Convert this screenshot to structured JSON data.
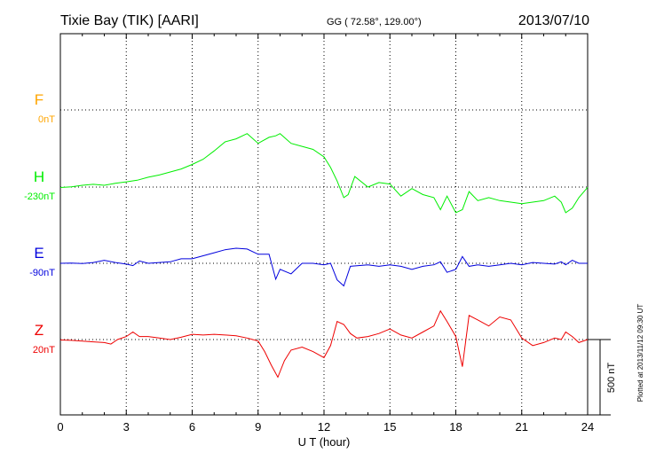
{
  "header": {
    "station": "Tixie Bay (TIK)  [AARI]",
    "coords": "GG ( 72.58°, 129.00°)",
    "date": "2013/07/10"
  },
  "footer": {
    "plotted": "Plotted at 2013/11/12 09:30 UT"
  },
  "colors": {
    "F": "#ffa500",
    "H": "#00ee00",
    "E": "#0000dd",
    "Z": "#ee0000",
    "grid": "#000000",
    "axis": "#000000"
  },
  "chart_data": {
    "type": "line",
    "xlabel": "U T (hour)",
    "xlim": [
      0,
      24
    ],
    "x_ticks": [
      "0",
      "3",
      "6",
      "9",
      "12",
      "15",
      "18",
      "21",
      "24"
    ],
    "scale_bar_label": "500 nT",
    "series": [
      {
        "name": "F",
        "baseline_label": "0nT",
        "points": []
      },
      {
        "name": "H",
        "baseline_label": "-230nT",
        "points": [
          [
            0,
            -233
          ],
          [
            0.5,
            -228
          ],
          [
            1,
            -218
          ],
          [
            1.5,
            -212
          ],
          [
            2,
            -218
          ],
          [
            2.5,
            -205
          ],
          [
            3,
            -195
          ],
          [
            3.5,
            -185
          ],
          [
            4,
            -165
          ],
          [
            4.5,
            -150
          ],
          [
            5,
            -130
          ],
          [
            5.5,
            -110
          ],
          [
            6,
            -80
          ],
          [
            6.5,
            -45
          ],
          [
            7,
            10
          ],
          [
            7.5,
            70
          ],
          [
            8,
            90
          ],
          [
            8.5,
            125
          ],
          [
            9,
            60
          ],
          [
            9.5,
            100
          ],
          [
            9.8,
            110
          ],
          [
            10,
            125
          ],
          [
            10.5,
            60
          ],
          [
            11,
            40
          ],
          [
            11.5,
            20
          ],
          [
            12,
            -30
          ],
          [
            12.3,
            -100
          ],
          [
            12.6,
            -190
          ],
          [
            12.9,
            -300
          ],
          [
            13.1,
            -280
          ],
          [
            13.4,
            -160
          ],
          [
            14,
            -230
          ],
          [
            14.5,
            -200
          ],
          [
            15,
            -210
          ],
          [
            15.5,
            -290
          ],
          [
            16,
            -240
          ],
          [
            16.5,
            -280
          ],
          [
            17,
            -300
          ],
          [
            17.3,
            -380
          ],
          [
            17.6,
            -290
          ],
          [
            18,
            -400
          ],
          [
            18.3,
            -380
          ],
          [
            18.6,
            -260
          ],
          [
            19,
            -320
          ],
          [
            19.5,
            -300
          ],
          [
            20,
            -320
          ],
          [
            20.5,
            -330
          ],
          [
            21,
            -340
          ],
          [
            21.5,
            -330
          ],
          [
            22,
            -320
          ],
          [
            22.5,
            -290
          ],
          [
            22.8,
            -330
          ],
          [
            23,
            -400
          ],
          [
            23.3,
            -370
          ],
          [
            23.6,
            -300
          ],
          [
            24,
            -232
          ]
        ]
      },
      {
        "name": "E",
        "baseline_label": "-90nT",
        "points": [
          [
            0,
            -90
          ],
          [
            0.5,
            -88
          ],
          [
            1,
            -92
          ],
          [
            1.5,
            -85
          ],
          [
            2,
            -70
          ],
          [
            2.5,
            -85
          ],
          [
            3,
            -95
          ],
          [
            3.3,
            -105
          ],
          [
            3.6,
            -75
          ],
          [
            4,
            -90
          ],
          [
            4.5,
            -85
          ],
          [
            5,
            -80
          ],
          [
            5.5,
            -60
          ],
          [
            6,
            -60
          ],
          [
            6.5,
            -40
          ],
          [
            7,
            -20
          ],
          [
            7.5,
            0
          ],
          [
            8,
            10
          ],
          [
            8.5,
            5
          ],
          [
            9,
            -30
          ],
          [
            9.5,
            -30
          ],
          [
            9.8,
            -195
          ],
          [
            10,
            -130
          ],
          [
            10.5,
            -160
          ],
          [
            11,
            -90
          ],
          [
            11.5,
            -90
          ],
          [
            12,
            -100
          ],
          [
            12.3,
            -90
          ],
          [
            12.6,
            -200
          ],
          [
            12.9,
            -240
          ],
          [
            13.2,
            -110
          ],
          [
            14,
            -100
          ],
          [
            14.5,
            -110
          ],
          [
            15,
            -100
          ],
          [
            15.5,
            -110
          ],
          [
            16,
            -130
          ],
          [
            16.5,
            -110
          ],
          [
            17,
            -100
          ],
          [
            17.3,
            -80
          ],
          [
            17.6,
            -150
          ],
          [
            18,
            -130
          ],
          [
            18.3,
            -45
          ],
          [
            18.6,
            -110
          ],
          [
            19,
            -100
          ],
          [
            19.5,
            -110
          ],
          [
            20,
            -100
          ],
          [
            20.5,
            -90
          ],
          [
            21,
            -100
          ],
          [
            21.5,
            -85
          ],
          [
            22,
            -90
          ],
          [
            22.5,
            -95
          ],
          [
            22.8,
            -80
          ],
          [
            23,
            -100
          ],
          [
            23.3,
            -70
          ],
          [
            23.6,
            -90
          ],
          [
            24,
            -90
          ]
        ]
      },
      {
        "name": "Z",
        "baseline_label": "20nT",
        "points": [
          [
            0,
            17
          ],
          [
            0.5,
            15
          ],
          [
            1,
            10
          ],
          [
            1.5,
            5
          ],
          [
            2,
            0
          ],
          [
            2.3,
            -10
          ],
          [
            2.6,
            20
          ],
          [
            3,
            40
          ],
          [
            3.3,
            70
          ],
          [
            3.6,
            40
          ],
          [
            4,
            40
          ],
          [
            4.5,
            30
          ],
          [
            5,
            20
          ],
          [
            5.5,
            35
          ],
          [
            6,
            55
          ],
          [
            6.5,
            50
          ],
          [
            7,
            55
          ],
          [
            7.5,
            50
          ],
          [
            8,
            45
          ],
          [
            8.5,
            30
          ],
          [
            9,
            10
          ],
          [
            9.3,
            -60
          ],
          [
            9.6,
            -150
          ],
          [
            9.9,
            -230
          ],
          [
            10.2,
            -120
          ],
          [
            10.5,
            -50
          ],
          [
            11,
            -30
          ],
          [
            11.5,
            -60
          ],
          [
            12,
            -100
          ],
          [
            12.3,
            -20
          ],
          [
            12.6,
            140
          ],
          [
            12.9,
            120
          ],
          [
            13.2,
            60
          ],
          [
            13.5,
            30
          ],
          [
            14,
            40
          ],
          [
            14.5,
            60
          ],
          [
            15,
            90
          ],
          [
            15.5,
            50
          ],
          [
            16,
            30
          ],
          [
            16.5,
            70
          ],
          [
            17,
            110
          ],
          [
            17.3,
            210
          ],
          [
            17.6,
            140
          ],
          [
            18,
            40
          ],
          [
            18.3,
            -160
          ],
          [
            18.6,
            180
          ],
          [
            19,
            150
          ],
          [
            19.5,
            110
          ],
          [
            20,
            170
          ],
          [
            20.5,
            150
          ],
          [
            21,
            30
          ],
          [
            21.5,
            -20
          ],
          [
            22,
            0
          ],
          [
            22.5,
            30
          ],
          [
            22.8,
            20
          ],
          [
            23,
            70
          ],
          [
            23.3,
            40
          ],
          [
            23.6,
            0
          ],
          [
            24,
            20
          ]
        ]
      }
    ]
  }
}
